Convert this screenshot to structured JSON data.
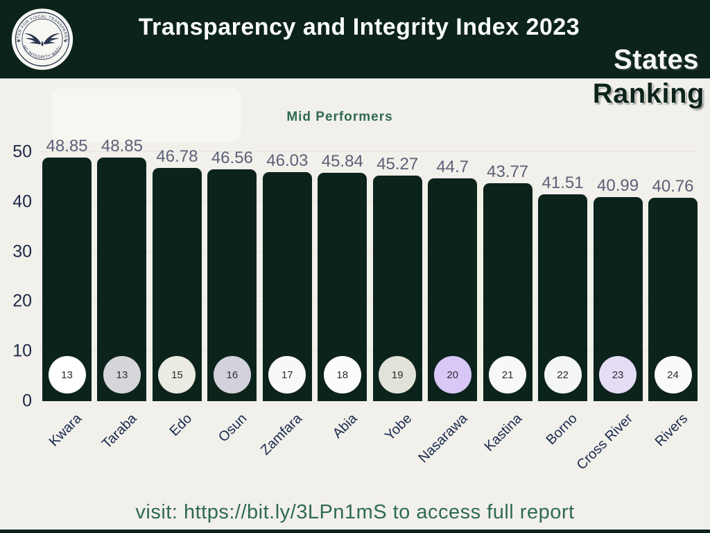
{
  "header": {
    "title": "Transparency and Integrity Index 2023",
    "logo": {
      "arc_top_text": "CENTER FOR FISCAL TRANSPARENCY",
      "arc_bottom_text": "AND INTEGRITY WATCH"
    },
    "badge_line1": "States",
    "badge_line2": "Ranking"
  },
  "chart_data": {
    "type": "bar",
    "title": "Mid Performers",
    "categories": [
      "Kwara",
      "Taraba",
      "Edo",
      "Osun",
      "Zamfara",
      "Abia",
      "Yobe",
      "Nasarawa",
      "Kastina",
      "Borno",
      "Cross River",
      "Rivers"
    ],
    "values": [
      48.85,
      48.85,
      46.78,
      46.56,
      46.03,
      45.84,
      45.27,
      44.7,
      43.77,
      41.51,
      40.99,
      40.76
    ],
    "ranks": [
      13,
      13,
      15,
      16,
      17,
      18,
      19,
      20,
      21,
      22,
      23,
      24
    ],
    "rank_circle_colors": [
      "#ffffff",
      "#d6d5d9",
      "#eaebe2",
      "#d3d1dc",
      "#f8f8f6",
      "#fcfcfc",
      "#e1e2d8",
      "#d9c7f8",
      "#f8f8f8",
      "#f4f5f7",
      "#e5dcf6",
      "#fafafa"
    ],
    "xlabel": "",
    "ylabel": "",
    "ylim": [
      0,
      50
    ],
    "y_ticks": [
      0,
      10,
      20,
      30,
      40,
      50
    ],
    "grid": true,
    "legend": false,
    "bar_color": "#0c231c"
  },
  "footer": {
    "text": "visit: https://bit.ly/3LPn1mS to access full report"
  },
  "colors": {
    "background": "#f2f0ea",
    "header_background": "#0c231c",
    "bar": "#0c231c",
    "title_text": "#fbfdfb",
    "chart_title_green": "#2f6b50",
    "value_label": "#5b6078",
    "axis_label": "#1c2948",
    "footer_text": "#2e6b51",
    "gridline": "#e6e4dd"
  }
}
